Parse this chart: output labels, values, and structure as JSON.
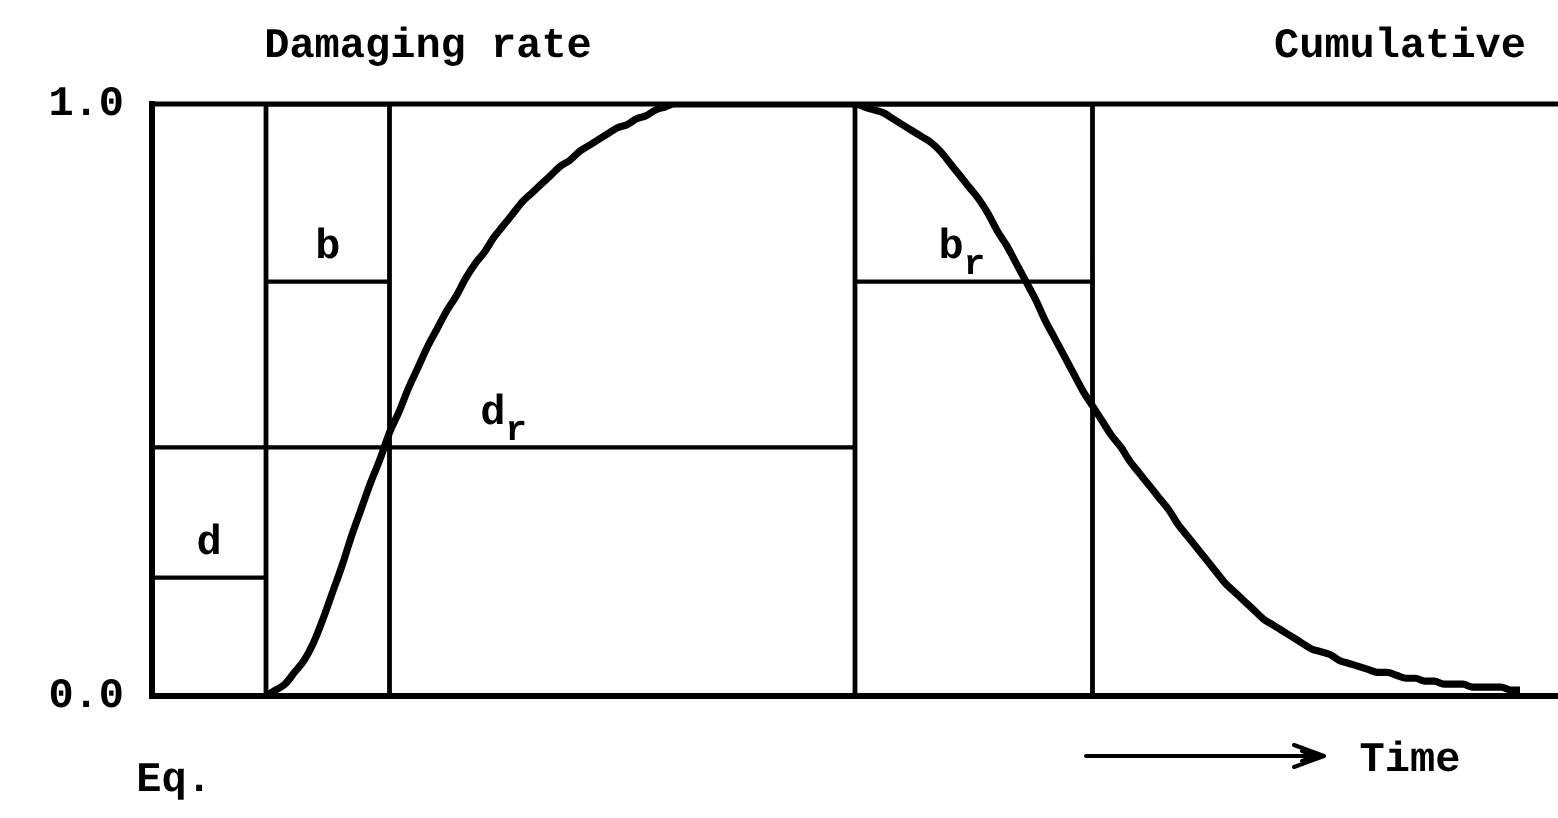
{
  "chart_data": {
    "type": "line",
    "annotations": [
      "Damaging rate",
      "Cumulative",
      "Eq."
    ],
    "xlabel": "Time",
    "categories": [
      null,
      null,
      null,
      null,
      null,
      null,
      null,
      null,
      null,
      null,
      null,
      null,
      null,
      null,
      null,
      null,
      null,
      null,
      null,
      null,
      null,
      null,
      null,
      null,
      null,
      null,
      null,
      null,
      null,
      null,
      null,
      null,
      null,
      null,
      null,
      null,
      null,
      null,
      null,
      null,
      null,
      null,
      null,
      null,
      null,
      null,
      null,
      null,
      null,
      null,
      null,
      null,
      null,
      null,
      null,
      null,
      null,
      null,
      null,
      null,
      null,
      null,
      null,
      null,
      null,
      null,
      null,
      null,
      null,
      null,
      null,
      null,
      null,
      null,
      null,
      null,
      null,
      null,
      null,
      null,
      null,
      null,
      null,
      null,
      null,
      null,
      null,
      null,
      null,
      null,
      null,
      null,
      null,
      null,
      null,
      null,
      null,
      null,
      null,
      null,
      null,
      null,
      null,
      null,
      null,
      null,
      null,
      null,
      null,
      null,
      null,
      null,
      null,
      null,
      null,
      null,
      null,
      null,
      null,
      null,
      null,
      null,
      null,
      null,
      null,
      null,
      null,
      null,
      null,
      null,
      null,
      null,
      null,
      null,
      null,
      null,
      null,
      null,
      null,
      null,
      null,
      null,
      null,
      null,
      null,
      null,
      null,
      null,
      null
    ],
    "ylim": [
      0,
      1
    ],
    "yticks": [
      {
        "value": 0,
        "label": "0.0"
      },
      {
        "value": 1,
        "label": "1.0"
      }
    ],
    "series": [
      {
        "color": "#000000",
        "values": [
          null,
          null,
          null,
          null,
          null,
          null,
          null,
          null,
          null,
          null,
          null,
          null,
          0,
          0.01,
          0.02,
          0.04,
          0.06,
          0.09,
          0.13,
          0.175,
          0.22,
          0.27,
          0.315,
          0.36,
          0.4,
          0.445,
          0.48,
          0.52,
          0.555,
          0.59,
          0.62,
          0.65,
          0.675,
          0.705,
          0.73,
          0.75,
          0.775,
          0.795,
          0.815,
          0.835,
          0.85,
          0.865,
          0.88,
          0.895,
          0.905,
          0.92,
          0.93,
          0.94,
          0.95,
          0.96,
          0.965,
          0.975,
          0.98,
          0.99,
          0.995,
          1,
          1,
          1,
          1,
          1,
          1,
          1,
          1,
          1,
          1,
          1,
          1,
          1,
          1,
          1,
          1,
          1,
          1,
          1,
          1,
          0.995,
          0.99,
          0.985,
          0.975,
          0.965,
          0.955,
          0.945,
          0.935,
          0.92,
          0.9,
          0.88,
          0.86,
          0.84,
          0.815,
          0.785,
          0.76,
          0.73,
          0.7,
          0.67,
          0.635,
          0.605,
          0.575,
          0.545,
          0.515,
          0.49,
          0.465,
          0.44,
          0.42,
          0.395,
          0.375,
          0.355,
          0.335,
          0.315,
          0.29,
          0.27,
          0.25,
          0.23,
          0.21,
          0.19,
          0.175,
          0.16,
          0.145,
          0.13,
          0.12,
          0.11,
          0.1,
          0.09,
          0.08,
          0.075,
          0.07,
          0.06,
          0.055,
          0.05,
          0.045,
          0.04,
          0.04,
          0.035,
          0.03,
          0.03,
          0.025,
          0.025,
          0.02,
          0.02,
          0.02,
          0.015,
          0.015,
          0.015,
          0.015,
          0.01,
          0.01,
          null,
          null,
          null,
          null
        ]
      },
      {
        "name": "d",
        "color": "#000000",
        "values": [
          0.2,
          0.2,
          0.2,
          0.2,
          0.2,
          0.2,
          0.2,
          0.2,
          0.2,
          0.2,
          0.2,
          0.2,
          0.2,
          null,
          null,
          null,
          null,
          null,
          null,
          null,
          null,
          null,
          null,
          null,
          null,
          null,
          null,
          null,
          null,
          null,
          null,
          null,
          null,
          null,
          null,
          null,
          null,
          null,
          null,
          null,
          null,
          null,
          null,
          null,
          null,
          null,
          null,
          null,
          null,
          null,
          null,
          null,
          null,
          null,
          null,
          null,
          null,
          null,
          null,
          null,
          null,
          null,
          null,
          null,
          null,
          null,
          null,
          null,
          null,
          null,
          null,
          null,
          null,
          null,
          null,
          null,
          null,
          null,
          null,
          null,
          null,
          null,
          null,
          null,
          null,
          null,
          null,
          null,
          null,
          null,
          null,
          null,
          null,
          null,
          null,
          null,
          null,
          null,
          null,
          null,
          null,
          null,
          null,
          null,
          null,
          null,
          null,
          null,
          null,
          null,
          null,
          null,
          null,
          null,
          null,
          null,
          null,
          null,
          null,
          null,
          null,
          null,
          null,
          null,
          null,
          null,
          null,
          null,
          null,
          null,
          null,
          null,
          null,
          null,
          null,
          null,
          null,
          null,
          null,
          null,
          null,
          null,
          null,
          null,
          null,
          null,
          null,
          null,
          null
        ]
      },
      {
        "name": "b",
        "color": "#000000",
        "values": [
          null,
          null,
          null,
          null,
          null,
          null,
          null,
          null,
          null,
          null,
          null,
          null,
          0.7,
          0.7,
          0.7,
          0.7,
          0.7,
          0.7,
          0.7,
          0.7,
          0.7,
          0.7,
          0.7,
          0.7,
          0.7,
          0.7,
          null,
          null,
          null,
          null,
          null,
          null,
          null,
          null,
          null,
          null,
          null,
          null,
          null,
          null,
          null,
          null,
          null,
          null,
          null,
          null,
          null,
          null,
          null,
          null,
          null,
          null,
          null,
          null,
          null,
          null,
          null,
          null,
          null,
          null,
          null,
          null,
          null,
          null,
          null,
          null,
          null,
          null,
          null,
          null,
          null,
          null,
          null,
          null,
          null,
          null,
          null,
          null,
          null,
          null,
          null,
          null,
          null,
          null,
          null,
          null,
          null,
          null,
          null,
          null,
          null,
          null,
          null,
          null,
          null,
          null,
          null,
          null,
          null,
          null,
          null,
          null,
          null,
          null,
          null,
          null,
          null,
          null,
          null,
          null,
          null,
          null,
          null,
          null,
          null,
          null,
          null,
          null,
          null,
          null,
          null,
          null,
          null,
          null,
          null,
          null,
          null,
          null,
          null,
          null,
          null,
          null,
          null,
          null,
          null,
          null,
          null,
          null,
          null,
          null,
          null,
          null,
          null,
          null,
          null,
          null,
          null,
          null,
          null
        ]
      },
      {
        "name": "d$_{r}$",
        "color": "#000000",
        "values": [
          0.42,
          0.42,
          0.42,
          0.42,
          0.42,
          0.42,
          0.42,
          0.42,
          0.42,
          0.42,
          0.42,
          0.42,
          0.42,
          0.42,
          0.42,
          0.42,
          0.42,
          0.42,
          0.42,
          0.42,
          0.42,
          0.42,
          0.42,
          0.42,
          0.42,
          0.42,
          0.42,
          0.42,
          0.42,
          0.42,
          0.42,
          0.42,
          0.42,
          0.42,
          0.42,
          0.42,
          0.42,
          0.42,
          0.42,
          0.42,
          0.42,
          0.42,
          0.42,
          0.42,
          0.42,
          0.42,
          0.42,
          0.42,
          0.42,
          0.42,
          0.42,
          0.42,
          0.42,
          0.42,
          0.42,
          0.42,
          0.42,
          0.42,
          0.42,
          0.42,
          0.42,
          0.42,
          0.42,
          0.42,
          0.42,
          0.42,
          0.42,
          0.42,
          0.42,
          0.42,
          0.42,
          0.42,
          0.42,
          0.42,
          0.42,
          null,
          null,
          null,
          null,
          null,
          null,
          null,
          null,
          null,
          null,
          null,
          null,
          null,
          null,
          null,
          null,
          null,
          null,
          null,
          null,
          null,
          null,
          null,
          null,
          null,
          null,
          null,
          null,
          null,
          null,
          null,
          null,
          null,
          null,
          null,
          null,
          null,
          null,
          null,
          null,
          null,
          null,
          null,
          null,
          null,
          null,
          null,
          null,
          null,
          null,
          null,
          null,
          null,
          null,
          null,
          null,
          null,
          null,
          null,
          null,
          null,
          null,
          null,
          null,
          null,
          null,
          null,
          null,
          null,
          null,
          null,
          null,
          null,
          null
        ]
      },
      {
        "name": "b$_{r}$",
        "color": "#000000",
        "values": [
          null,
          null,
          null,
          null,
          null,
          null,
          null,
          null,
          null,
          null,
          null,
          null,
          null,
          null,
          null,
          null,
          null,
          null,
          null,
          null,
          null,
          null,
          null,
          null,
          null,
          null,
          null,
          null,
          null,
          null,
          null,
          null,
          null,
          null,
          null,
          null,
          null,
          null,
          null,
          null,
          null,
          null,
          null,
          null,
          null,
          null,
          null,
          null,
          null,
          null,
          null,
          null,
          null,
          null,
          null,
          null,
          null,
          null,
          null,
          null,
          null,
          null,
          null,
          null,
          null,
          null,
          null,
          null,
          null,
          null,
          null,
          null,
          null,
          null,
          0.7,
          0.7,
          0.7,
          0.7,
          0.7,
          0.7,
          0.7,
          0.7,
          0.7,
          0.7,
          0.7,
          0.7,
          0.7,
          0.7,
          0.7,
          0.7,
          0.7,
          0.7,
          0.7,
          0.7,
          0.7,
          0.7,
          0.7,
          0.7,
          0.7,
          0.7,
          null,
          null,
          null,
          null,
          null,
          null,
          null,
          null,
          null,
          null,
          null,
          null,
          null,
          null,
          null,
          null,
          null,
          null,
          null,
          null,
          null,
          null,
          null,
          null,
          null,
          null,
          null,
          null,
          null,
          null,
          null,
          null,
          null,
          null,
          null,
          null,
          null,
          null,
          null,
          null,
          null,
          null,
          null,
          null,
          null,
          null,
          null,
          null,
          null
        ]
      },
      {
        "type": "step",
        "color": "#000000",
        "values": [
          0,
          0,
          0,
          0,
          0,
          0,
          0,
          0,
          0,
          0,
          0,
          0,
          1,
          1,
          1,
          1,
          1,
          1,
          1,
          1,
          1,
          1,
          1,
          1,
          1,
          0,
          0,
          0,
          0,
          0,
          0,
          0,
          0,
          0,
          0,
          0,
          0,
          0,
          0,
          0,
          0,
          0,
          0,
          0,
          0,
          0,
          0,
          0,
          0,
          0,
          0,
          0,
          0,
          0,
          0,
          0,
          0,
          0,
          0,
          0,
          0,
          0,
          0,
          0,
          0,
          0,
          0,
          0,
          0,
          0,
          0,
          0,
          0,
          0,
          1,
          1,
          1,
          1,
          1,
          1,
          1,
          1,
          1,
          1,
          1,
          1,
          1,
          1,
          1,
          1,
          1,
          1,
          1,
          1,
          1,
          1,
          1,
          1,
          1,
          0,
          0,
          0,
          0,
          0,
          0,
          0,
          0,
          0,
          0,
          0,
          0,
          0,
          0,
          0,
          0,
          0,
          0,
          0,
          0,
          0,
          0,
          0,
          0,
          0,
          0,
          0,
          0,
          0,
          0,
          0,
          0,
          0,
          0,
          0,
          0,
          0,
          0,
          0,
          0,
          0,
          0,
          0,
          0,
          0,
          0,
          0,
          0,
          0,
          0
        ]
      }
    ],
    "marker": "none",
    "tick_labels": "y"
  }
}
